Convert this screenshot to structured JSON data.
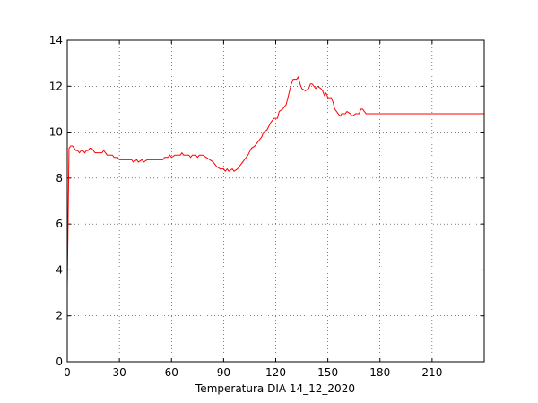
{
  "chart_data": {
    "type": "line",
    "xlabel": "Temperatura DIA 14_12_2020",
    "x": [
      0,
      1,
      2,
      3,
      4,
      5,
      6,
      7,
      8,
      9,
      10,
      11,
      12,
      13,
      14,
      15,
      16,
      18,
      20,
      21,
      22,
      23,
      25,
      26,
      27,
      29,
      30,
      35,
      37,
      38,
      40,
      41,
      43,
      44,
      46,
      50,
      55,
      56,
      58,
      59,
      60,
      62,
      65,
      66,
      67,
      70,
      71,
      72,
      74,
      75,
      76,
      78,
      80,
      82,
      84,
      86,
      88,
      90,
      91,
      92,
      93,
      95,
      96,
      98,
      100,
      102,
      104,
      106,
      108,
      110,
      112,
      113,
      115,
      117,
      119,
      121,
      122,
      124,
      126,
      128,
      129,
      130,
      132,
      133,
      134,
      135,
      137,
      139,
      140,
      141,
      142,
      143,
      144,
      146,
      147,
      148,
      149,
      150,
      152,
      153,
      154,
      156,
      157,
      158,
      160,
      161,
      163,
      164,
      166,
      168,
      169,
      170,
      172,
      240
    ],
    "series": [
      {
        "color": "#ff0000",
        "values": [
          3.2,
          9.3,
          9.4,
          9.4,
          9.3,
          9.2,
          9.2,
          9.1,
          9.2,
          9.2,
          9.1,
          9.2,
          9.2,
          9.3,
          9.3,
          9.2,
          9.1,
          9.1,
          9.1,
          9.2,
          9.1,
          9.0,
          9.0,
          9.0,
          8.9,
          8.9,
          8.8,
          8.8,
          8.8,
          8.7,
          8.8,
          8.7,
          8.8,
          8.7,
          8.8,
          8.8,
          8.8,
          8.9,
          8.9,
          9.0,
          8.9,
          9.0,
          9.0,
          9.1,
          9.0,
          9.0,
          8.9,
          9.0,
          9.0,
          8.9,
          9.0,
          9.0,
          8.9,
          8.8,
          8.7,
          8.5,
          8.4,
          8.4,
          8.3,
          8.4,
          8.3,
          8.4,
          8.3,
          8.4,
          8.6,
          8.8,
          9.0,
          9.3,
          9.4,
          9.6,
          9.8,
          10.0,
          10.1,
          10.4,
          10.6,
          10.6,
          10.9,
          11.0,
          11.2,
          11.8,
          12.1,
          12.3,
          12.3,
          12.4,
          12.1,
          11.9,
          11.8,
          11.9,
          12.1,
          12.1,
          12.0,
          11.9,
          12.0,
          11.9,
          11.8,
          11.6,
          11.7,
          11.5,
          11.5,
          11.3,
          11.0,
          10.8,
          10.7,
          10.8,
          10.8,
          10.9,
          10.8,
          10.7,
          10.8,
          10.8,
          11.0,
          11.0,
          10.8,
          10.8
        ]
      }
    ],
    "xlim": [
      0,
      240
    ],
    "xticks": [
      0,
      30,
      60,
      90,
      120,
      150,
      180,
      210
    ],
    "ylim": [
      0,
      14
    ],
    "yticks": [
      0,
      2,
      4,
      6,
      8,
      10,
      12,
      14
    ],
    "grid": true
  }
}
